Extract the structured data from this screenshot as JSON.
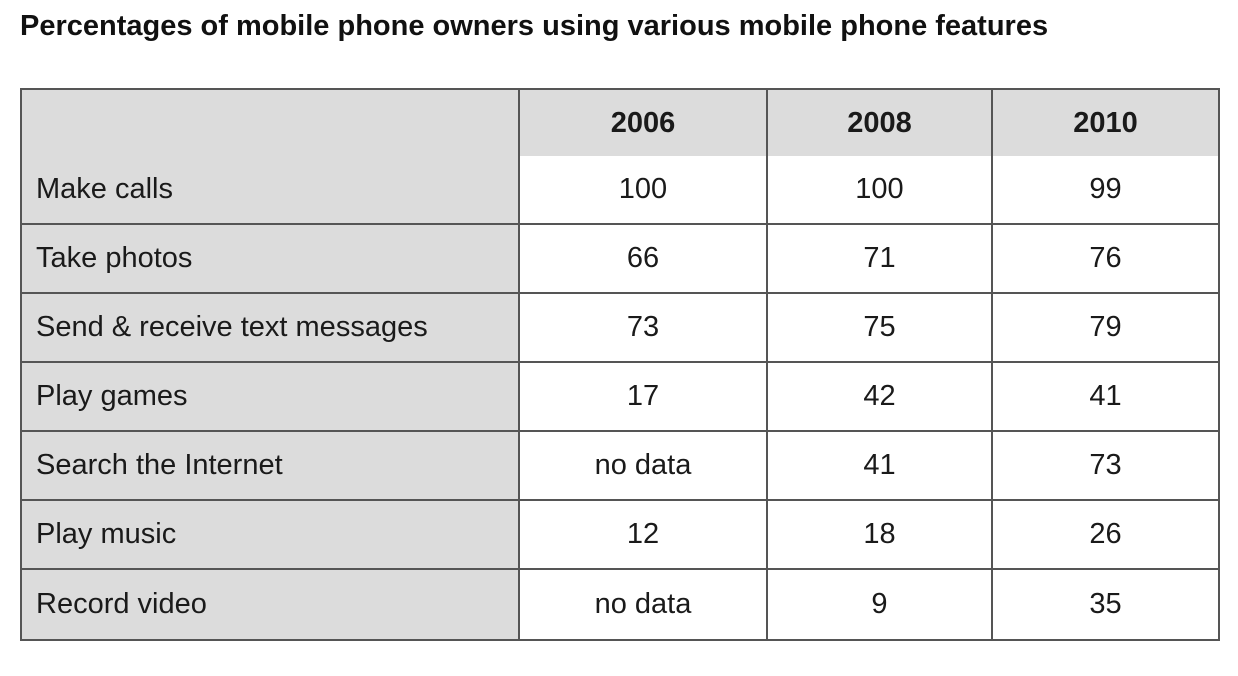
{
  "chart_data": {
    "type": "table",
    "title": "Percentages of mobile phone owners using various mobile phone features",
    "columns": [
      "2006",
      "2008",
      "2010"
    ],
    "rows": [
      {
        "label": "Make calls",
        "values": [
          "100",
          "100",
          "99"
        ]
      },
      {
        "label": "Take photos",
        "values": [
          "66",
          "71",
          "76"
        ]
      },
      {
        "label": "Send & receive text messages",
        "values": [
          "73",
          "75",
          "79"
        ]
      },
      {
        "label": "Play games",
        "values": [
          "17",
          "42",
          "41"
        ]
      },
      {
        "label": "Search the Internet",
        "values": [
          "no data",
          "41",
          "73"
        ]
      },
      {
        "label": "Play music",
        "values": [
          "12",
          "18",
          "26"
        ]
      },
      {
        "label": "Record video",
        "values": [
          "no data",
          "9",
          "35"
        ]
      }
    ]
  },
  "colors": {
    "header_fill": "#dcdcdc",
    "cell_fill": "#ffffff",
    "border": "#555555"
  }
}
